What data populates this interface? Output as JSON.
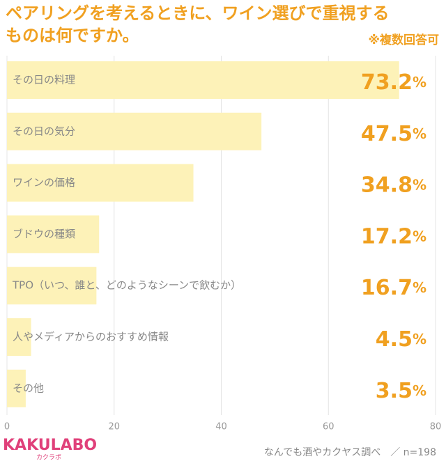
{
  "chart_data": {
    "type": "barh",
    "title": [
      "ペアリングを考えるときに、ワイン選びで重視する",
      "ものは何ですか。"
    ],
    "subtitle": "※複数回答可",
    "categories": [
      "その日の料理",
      "その日の気分",
      "ワインの価格",
      "ブドウの種類",
      "TPO（いつ、誰と、どのようなシーンで飲むか）",
      "人やメディアからのおすすめ情報",
      "その他"
    ],
    "values": [
      73.2,
      47.5,
      34.8,
      17.2,
      16.7,
      4.5,
      3.5
    ],
    "value_labels": [
      "73.2%",
      "47.5%",
      "34.8%",
      "17.2%",
      "16.7%",
      "4.5%",
      "3.5%"
    ],
    "color": "#fdf2b8",
    "xlim": [
      0,
      80
    ],
    "xticks": [
      0,
      20,
      40,
      60,
      80
    ],
    "grid": true,
    "logo": "KAKULABO",
    "logo_sub": "カクラボ",
    "source": "なんでも酒やカクヤス調べ　／ n=198"
  }
}
